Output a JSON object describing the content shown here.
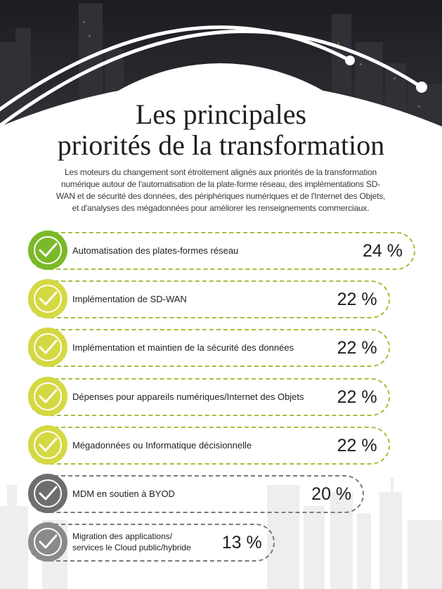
{
  "title": {
    "line1": "Les principales",
    "line2": "priorités de la transformation"
  },
  "intro": "Les moteurs du changement sont étroitement alignés aux priorités de la transformation numérique autour de l'automatisation de la plate-forme réseau, des implémentations SD-WAN et de sécurité des données, des périphériques numériques et de l'Internet des Objets, et d'analyses des mégadonnées pour améliorer les renseignements commerciaux.",
  "chart_data": {
    "type": "bar",
    "categories": [
      "Automatisation des plates-formes réseau",
      "Implémentation de SD-WAN",
      "Implémentation et maintien de la sécurité des données",
      "Dépenses pour appareils numériques/Internet des Objets",
      "Mégadonnées ou Informatique décisionnelle",
      "MDM en soutien à BYOD",
      "Migration des applications/ services le Cloud public/hybride"
    ],
    "values": [
      24,
      22,
      22,
      22,
      22,
      20,
      13
    ],
    "value_labels": [
      "24 %",
      "22 %",
      "22 %",
      "22 %",
      "22 %",
      "20 %",
      "13 %"
    ],
    "colors": {
      "top": "#7ab929",
      "mid": "#d4d943",
      "low": "#6e6e6e",
      "low2": "#8a8a8a",
      "dash_green": "#9fc23a",
      "dash_gray": "#7a7a7a"
    }
  },
  "icons": {
    "check": "checkmark-icon"
  }
}
